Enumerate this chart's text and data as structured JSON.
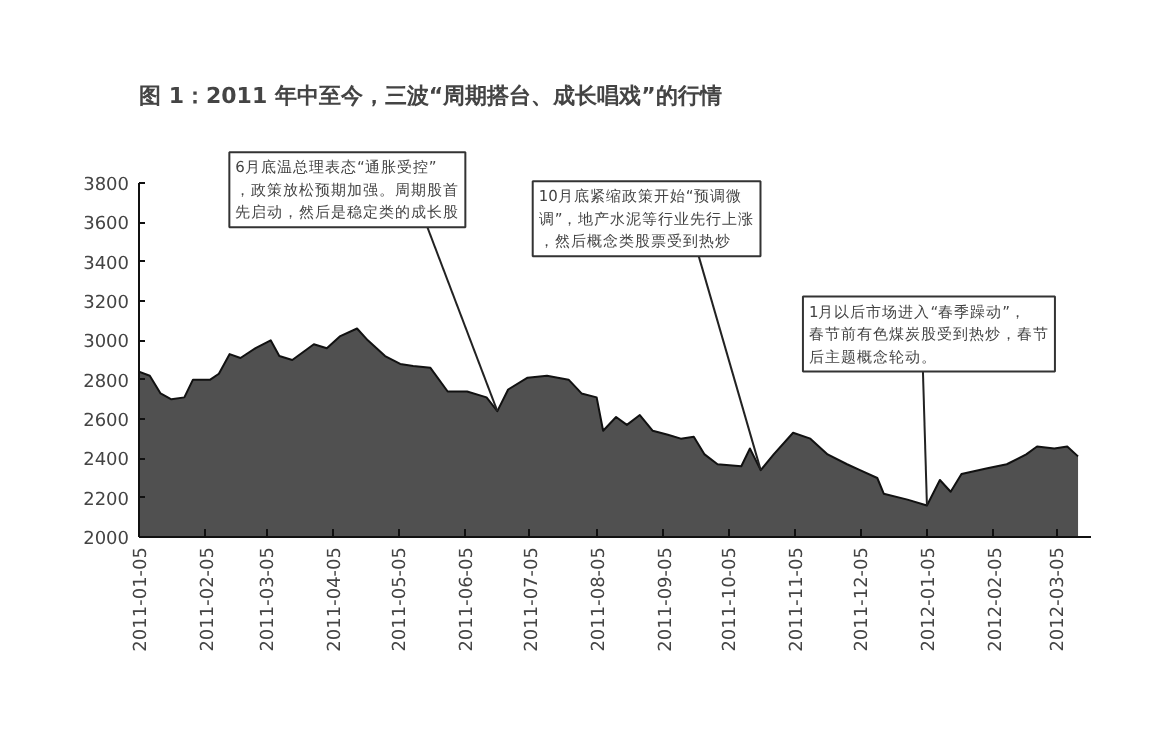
{
  "chart_data": {
    "type": "area",
    "title": "图 1：2011 年中至今，三波“周期搭台、成长唱戏”的行情",
    "x": [
      "2011-01-05",
      "2011-01-10",
      "2011-01-15",
      "2011-01-20",
      "2011-01-26",
      "2011-01-30",
      "2011-02-07",
      "2011-02-11",
      "2011-02-16",
      "2011-02-21",
      "2011-02-28",
      "2011-03-07",
      "2011-03-11",
      "2011-03-17",
      "2011-03-27",
      "2011-04-02",
      "2011-04-08",
      "2011-04-16",
      "2011-04-21",
      "2011-04-29",
      "2011-05-06",
      "2011-05-12",
      "2011-05-20",
      "2011-05-28",
      "2011-06-06",
      "2011-06-15",
      "2011-06-20",
      "2011-06-25",
      "2011-07-04",
      "2011-07-13",
      "2011-07-23",
      "2011-07-29",
      "2011-08-05",
      "2011-08-08",
      "2011-08-14",
      "2011-08-19",
      "2011-08-25",
      "2011-08-31",
      "2011-09-07",
      "2011-09-13",
      "2011-09-19",
      "2011-09-24",
      "2011-09-30",
      "2011-10-11",
      "2011-10-15",
      "2011-10-20",
      "2011-10-26",
      "2011-11-04",
      "2011-11-12",
      "2011-11-20",
      "2011-11-29",
      "2011-12-05",
      "2011-12-13",
      "2011-12-16",
      "2011-12-27",
      "2012-01-05",
      "2012-01-11",
      "2012-01-16",
      "2012-01-21",
      "2012-02-02",
      "2012-02-11",
      "2012-02-20",
      "2012-02-25",
      "2012-03-04",
      "2012-03-10",
      "2012-03-15"
    ],
    "series": [
      {
        "color": "#505050",
        "values": [
          2840,
          2820,
          2730,
          2700,
          2710,
          2800,
          2800,
          2830,
          2930,
          2910,
          2960,
          3000,
          2920,
          2900,
          2980,
          2960,
          3020,
          3060,
          3000,
          2920,
          2880,
          2870,
          2860,
          2740,
          2740,
          2710,
          2640,
          2750,
          2810,
          2820,
          2800,
          2730,
          2710,
          2540,
          2610,
          2570,
          2620,
          2540,
          2520,
          2500,
          2510,
          2420,
          2370,
          2360,
          2450,
          2340,
          2420,
          2530,
          2500,
          2420,
          2370,
          2340,
          2300,
          2220,
          2190,
          2160,
          2290,
          2230,
          2320,
          2350,
          2370,
          2420,
          2460,
          2450,
          2460,
          2410
        ]
      }
    ],
    "xlim": [
      "2011-01-05",
      "2012-03-21"
    ],
    "xticks": [
      "2011-01-05",
      "2011-02-05",
      "2011-03-05",
      "2011-04-05",
      "2011-05-05",
      "2011-06-05",
      "2011-07-05",
      "2011-08-05",
      "2011-09-05",
      "2011-10-05",
      "2011-11-05",
      "2011-12-05",
      "2012-01-05",
      "2012-02-05",
      "2012-03-05"
    ],
    "ylim": [
      2000,
      3800
    ],
    "yticks": [
      2000,
      2200,
      2400,
      2600,
      2800,
      3000,
      3200,
      3400,
      3600,
      3800
    ],
    "grid": false,
    "annotations": [
      {
        "text": "6月底温总理表态“通胀受控”，政策放松预期加强。周期股首先启动，然后是稳定类的成长股",
        "x": "2011-06-20",
        "y": 2640
      },
      {
        "text": "10月底紧缩政策开始“预调微调”，地产水泥等行业先行上涨，然后概念类股票受到热炒",
        "x": "2011-10-20",
        "y": 2340
      },
      {
        "text": "1月以后市场进入“春季躁动”，春节前有色煤炭股受到热炒，春节后主题概念轮动。",
        "x": "2012-01-05",
        "y": 2160
      }
    ]
  }
}
